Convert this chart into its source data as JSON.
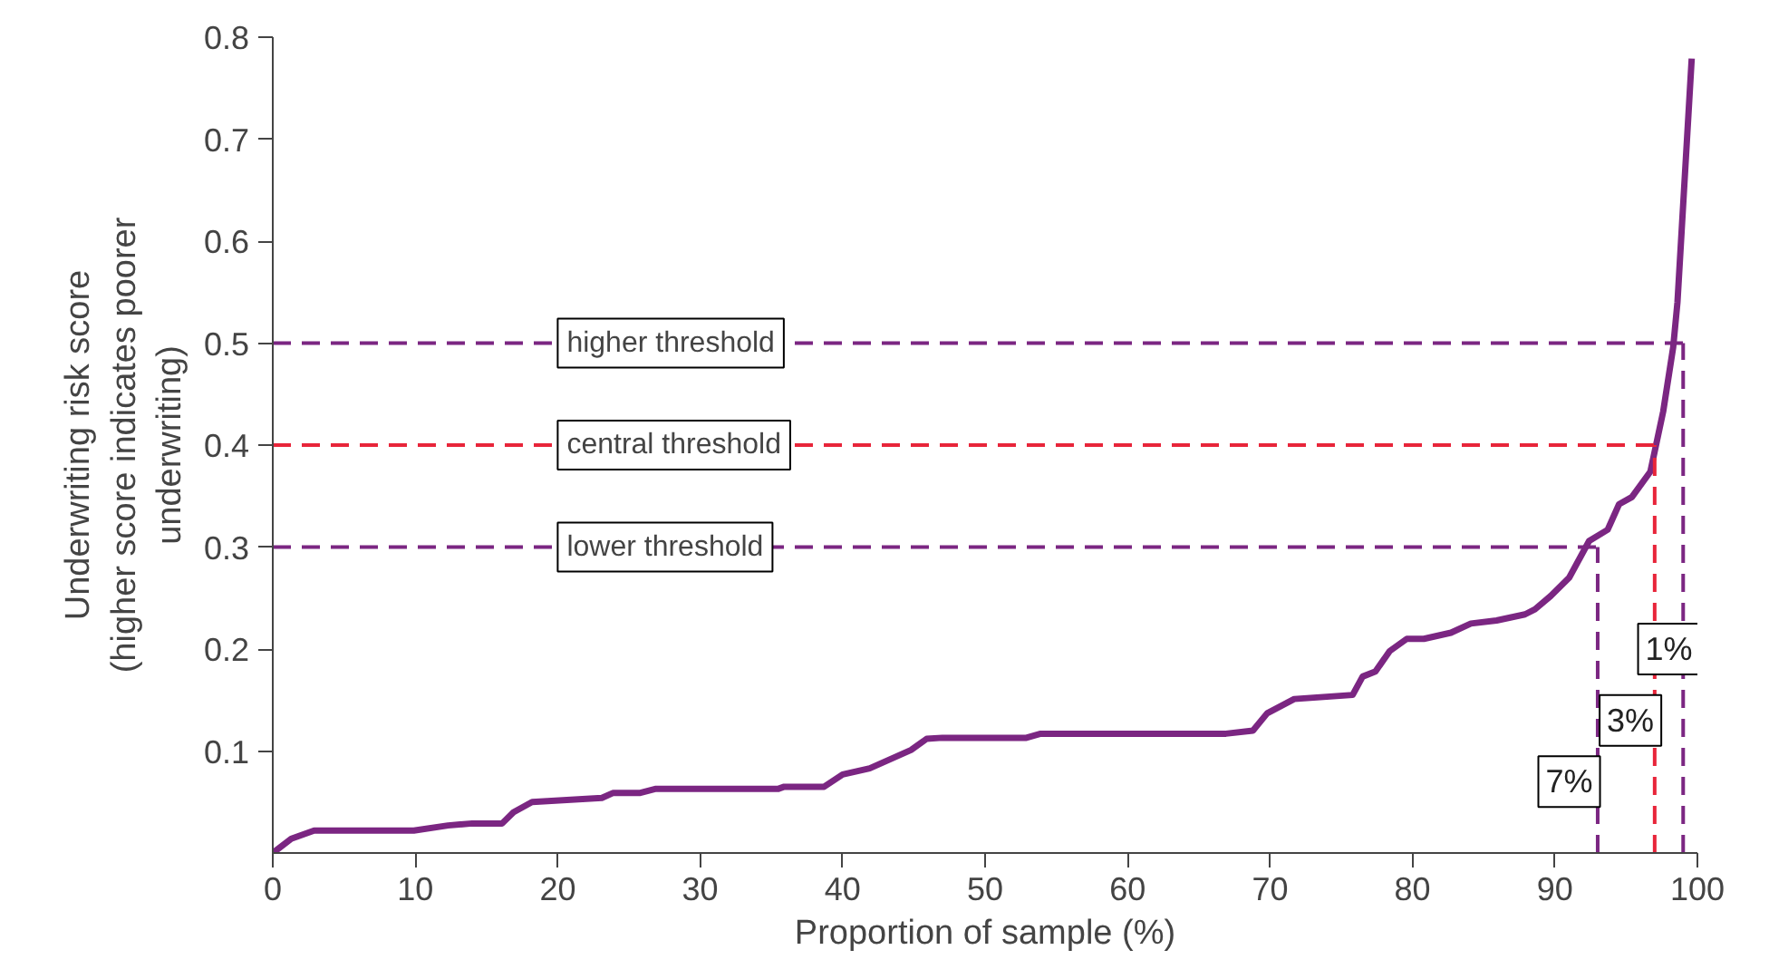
{
  "chart_data": {
    "type": "line",
    "xlabel": "Proportion of sample (%)",
    "ylabel": "Underwriting risk score\n(higher score indicates poorer\nunderwriting)",
    "x": [
      0,
      1.3,
      2.9,
      9.9,
      12.3,
      14,
      16.1,
      16.9,
      18.2,
      23.1,
      23.9,
      25.8,
      26.9,
      35.5,
      35.9,
      38.7,
      40,
      41.9,
      44.8,
      45.9,
      47,
      49.5,
      52.9,
      53.9,
      66.9,
      68.8,
      69.8,
      71.7,
      75.8,
      76.5,
      77.4,
      78.4,
      79.6,
      80.8,
      82.7,
      84.1,
      85.9,
      87.9,
      88.6,
      89.7,
      91,
      92.4,
      93.7,
      94.5,
      95.4,
      96.7,
      97.6,
      98.3,
      98.6,
      99.6
    ],
    "series": [
      {
        "color": "#7b2682",
        "values": [
          0,
          0.014,
          0.022,
          0.022,
          0.027,
          0.029,
          0.029,
          0.04,
          0.05,
          0.054,
          0.059,
          0.059,
          0.063,
          0.063,
          0.065,
          0.065,
          0.077,
          0.083,
          0.101,
          0.112,
          0.113,
          0.113,
          0.113,
          0.117,
          0.117,
          0.12,
          0.137,
          0.151,
          0.155,
          0.173,
          0.178,
          0.198,
          0.21,
          0.21,
          0.216,
          0.225,
          0.228,
          0.234,
          0.239,
          0.252,
          0.27,
          0.306,
          0.317,
          0.342,
          0.349,
          0.374,
          0.433,
          0.496,
          0.54,
          0.779
        ]
      }
    ],
    "xlim": [
      0,
      100
    ],
    "xticks": [
      0,
      10,
      20,
      30,
      40,
      50,
      60,
      70,
      80,
      90,
      100
    ],
    "ylim": [
      0,
      0.8
    ],
    "yticks": [
      0.1,
      0.2,
      0.3,
      0.4,
      0.5,
      0.6,
      0.7,
      0.8
    ],
    "grid": false,
    "marker": "none",
    "line_style": "solid",
    "annotations": [
      {
        "text": "7%",
        "x": 91,
        "y": 0.07
      },
      {
        "text": "3%",
        "x": 95.3,
        "y": 0.13
      },
      {
        "text": "1%",
        "x": 98,
        "y": 0.2
      }
    ],
    "ref_lines": [
      {
        "axis": "y",
        "value": 0.5,
        "label": "higher threshold",
        "color": "#7b2682",
        "line_style": "dashed"
      },
      {
        "axis": "y",
        "value": 0.4,
        "label": "central threshold",
        "color": "#e8253a",
        "line_style": "dashed"
      },
      {
        "axis": "y",
        "value": 0.3,
        "label": "lower threshold",
        "color": "#7b2682",
        "line_style": "dashed"
      },
      {
        "axis": "x",
        "value": 93,
        "color": "#7b2682",
        "line_style": "dashed"
      },
      {
        "axis": "x",
        "value": 97,
        "color": "#e8253a",
        "line_style": "dashed"
      },
      {
        "axis": "x",
        "value": 99,
        "color": "#7b2682",
        "line_style": "dashed"
      }
    ]
  }
}
